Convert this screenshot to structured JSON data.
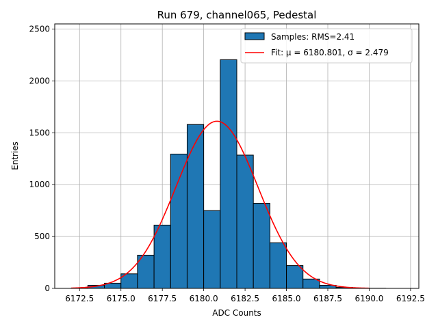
{
  "chart_data": {
    "type": "bar",
    "title": "Run 679, channel065, Pedestal",
    "xlabel": "ADC Counts",
    "ylabel": "Entries",
    "xlim": [
      6171.0,
      6193.0
    ],
    "ylim": [
      0,
      2550
    ],
    "x_ticks": [
      6172.5,
      6175.0,
      6177.5,
      6180.0,
      6182.5,
      6185.0,
      6187.5,
      6190.0,
      6192.5
    ],
    "x_tick_labels": [
      "6172.5",
      "6175.0",
      "6177.5",
      "6180.0",
      "6182.5",
      "6185.0",
      "6187.5",
      "6190.0",
      "6192.5"
    ],
    "y_ticks": [
      0,
      500,
      1000,
      1500,
      2000,
      2500
    ],
    "y_tick_labels": [
      "0",
      "500",
      "1000",
      "1500",
      "2000",
      "2500"
    ],
    "grid": true,
    "bin_edges": [
      6172,
      6173,
      6174,
      6175,
      6176,
      6177,
      6178,
      6179,
      6180,
      6181,
      6182,
      6183,
      6184,
      6185,
      6186,
      6187,
      6188,
      6189,
      6190,
      6191,
      6192
    ],
    "bin_counts": [
      3,
      30,
      50,
      140,
      320,
      610,
      1295,
      1580,
      750,
      2205,
      1285,
      820,
      440,
      220,
      90,
      30,
      10,
      3,
      1,
      0
    ],
    "hist_color": "#1f77b4",
    "fit": {
      "label": "Fit: μ = 6180.801, σ = 2.479",
      "mu": 6180.801,
      "sigma": 2.479,
      "amplitude": 1612,
      "x_range": [
        6172,
        6190
      ],
      "color": "#ff0000"
    },
    "legend": {
      "position": "top-right",
      "entries": [
        {
          "label": "Samples: RMS=2.41",
          "kind": "patch",
          "color": "#1f77b4"
        },
        {
          "label": "Fit: μ = 6180.801, σ = 2.479",
          "kind": "line",
          "color": "#ff0000"
        }
      ]
    }
  }
}
